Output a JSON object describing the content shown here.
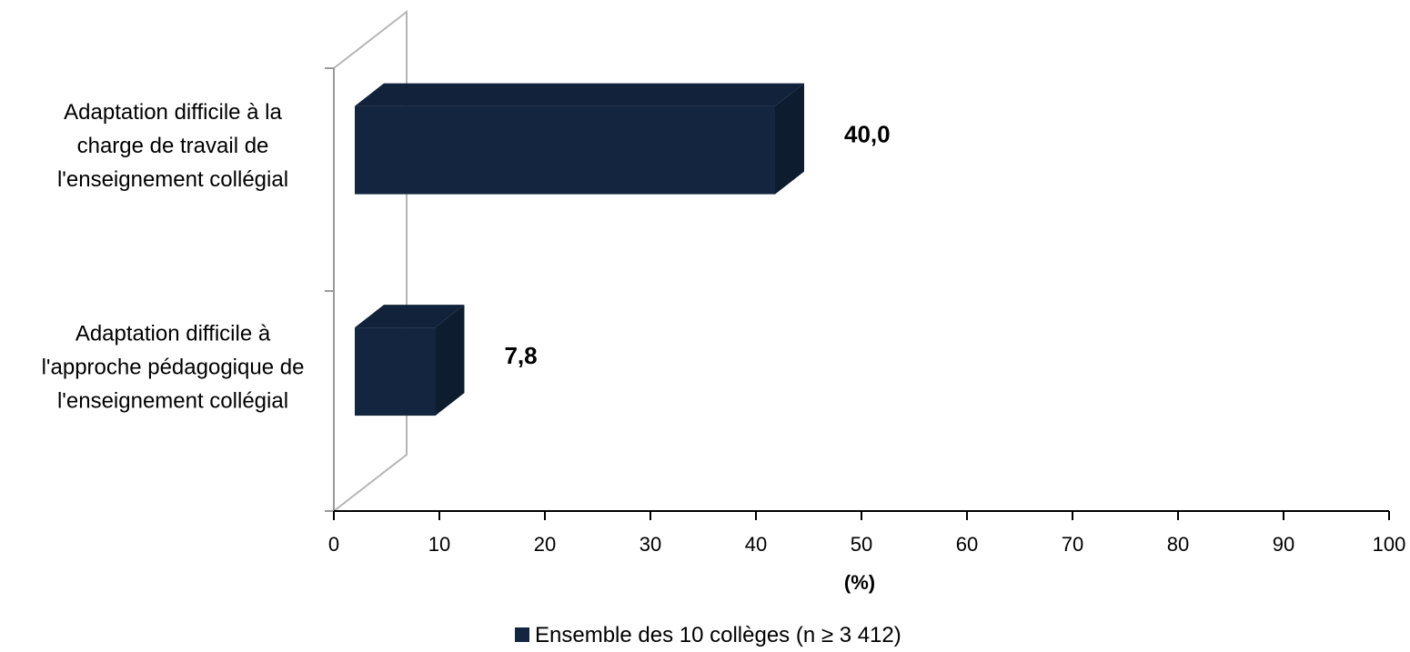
{
  "chart_data": {
    "type": "bar",
    "orientation": "horizontal",
    "three_d": true,
    "categories": [
      [
        "Adaptation difficile à la",
        "charge de travail de",
        "l'enseignement collégial"
      ],
      [
        "Adaptation difficile à",
        "l'approche pédagogique de",
        "l'enseignement collégial"
      ]
    ],
    "series": [
      {
        "name": "Ensemble des 10 collèges (n ≥ 3 412)",
        "values": [
          40.0,
          7.8
        ],
        "value_labels": [
          "40,0",
          "7,8"
        ],
        "color": "#14263f"
      }
    ],
    "xlabel": "(%)",
    "xlim": [
      0,
      100
    ],
    "x_ticks": [
      "0",
      "10",
      "20",
      "30",
      "40",
      "50",
      "60",
      "70",
      "80",
      "90",
      "100"
    ],
    "legend_position": "bottom",
    "grid": false
  }
}
